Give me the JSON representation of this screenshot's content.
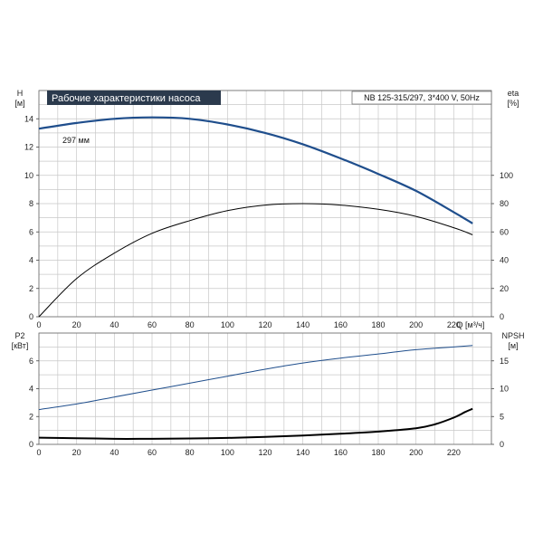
{
  "chart_data": [
    {
      "type": "line",
      "title": "Рабочие характеристики насоса",
      "subtitle": "NB 125-315/297, 3*400 V, 50Hz",
      "xlabel": "Q [м³/ч]",
      "ylabel": "H",
      "ylabel_unit": "[м]",
      "y2label": "eta",
      "y2label_unit": "[%]",
      "xlim": [
        0,
        240
      ],
      "ylim": [
        0,
        16
      ],
      "y2lim": [
        0,
        160
      ],
      "x_ticks": [
        "0",
        "20",
        "40",
        "60",
        "80",
        "100",
        "120",
        "140",
        "160",
        "180",
        "200",
        "220"
      ],
      "y_ticks": [
        "0",
        "2",
        "4",
        "6",
        "8",
        "10",
        "12",
        "14"
      ],
      "y2_ticks": [
        "0",
        "20",
        "40",
        "60",
        "80",
        "100"
      ],
      "grid": true,
      "series": [
        {
          "name": "297 мм",
          "axis": "left",
          "color": "#1f4e8c",
          "x": [
            0,
            20,
            40,
            60,
            80,
            100,
            120,
            140,
            160,
            180,
            200,
            220,
            230
          ],
          "y": [
            13.3,
            13.7,
            14.0,
            14.1,
            14.0,
            13.6,
            13.0,
            12.2,
            11.2,
            10.1,
            8.9,
            7.4,
            6.6
          ]
        },
        {
          "name": "",
          "axis": "right",
          "color": "#000000",
          "x": [
            0,
            20,
            40,
            60,
            80,
            100,
            120,
            140,
            160,
            180,
            200,
            220,
            230
          ],
          "y": [
            0,
            27,
            45,
            59,
            68,
            75,
            79,
            80,
            79,
            76,
            71,
            63,
            58
          ]
        }
      ]
    },
    {
      "type": "line",
      "ylabel": "P2",
      "ylabel_unit": "[кВт]",
      "y2label": "NPSH",
      "y2label_unit": "[м]",
      "xlim": [
        0,
        240
      ],
      "ylim": [
        0,
        8
      ],
      "y2lim": [
        0,
        20
      ],
      "y_ticks": [
        "0",
        "2",
        "4",
        "6"
      ],
      "y2_ticks": [
        "0",
        "5",
        "10",
        "15"
      ],
      "grid": true,
      "series": [
        {
          "name": "",
          "axis": "left",
          "color": "#1f4e8c",
          "x": [
            0,
            20,
            40,
            60,
            80,
            100,
            120,
            140,
            160,
            180,
            200,
            220,
            230
          ],
          "y": [
            2.5,
            2.9,
            3.4,
            3.9,
            4.4,
            4.9,
            5.4,
            5.85,
            6.2,
            6.5,
            6.8,
            7.0,
            7.1
          ]
        },
        {
          "name": "",
          "axis": "right",
          "color": "#000000",
          "x": [
            0,
            20,
            40,
            60,
            80,
            100,
            120,
            140,
            160,
            180,
            200,
            210,
            220,
            226,
            230
          ],
          "y": [
            1.2,
            1.1,
            1.0,
            1.0,
            1.05,
            1.15,
            1.35,
            1.6,
            1.9,
            2.3,
            2.9,
            3.6,
            4.8,
            5.8,
            6.4
          ]
        }
      ]
    }
  ]
}
